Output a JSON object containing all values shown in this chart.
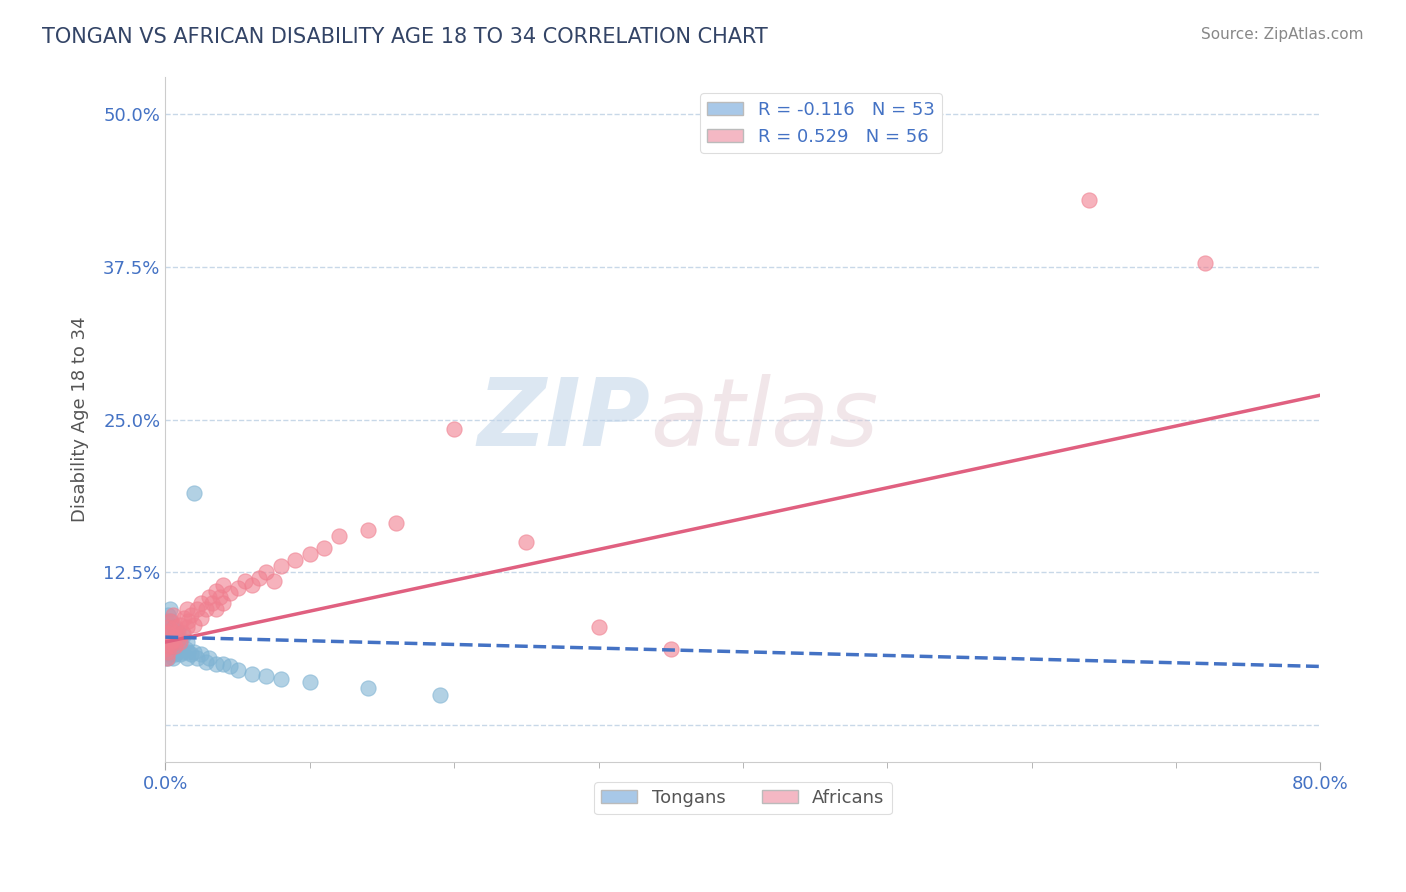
{
  "title": "TONGAN VS AFRICAN DISABILITY AGE 18 TO 34 CORRELATION CHART",
  "source_text": "Source: ZipAtlas.com",
  "ylabel": "Disability Age 18 to 34",
  "xlim": [
    0.0,
    0.8
  ],
  "ylim": [
    -0.03,
    0.53
  ],
  "yticks": [
    0.0,
    0.125,
    0.25,
    0.375,
    0.5
  ],
  "ytick_labels": [
    "",
    "12.5%",
    "25.0%",
    "37.5%",
    "50.0%"
  ],
  "xtick_labels": [
    "0.0%",
    "80.0%"
  ],
  "tongan_color": "#7fb3d3",
  "african_color": "#f08090",
  "tongan_line_color": "#4472c4",
  "african_line_color": "#e06080",
  "background_color": "#ffffff",
  "grid_color": "#c8d8e8",
  "watermark_zip": "ZIP",
  "watermark_atlas": "atlas",
  "tongan_scatter_x": [
    0.0,
    0.0,
    0.0,
    0.001,
    0.001,
    0.001,
    0.002,
    0.002,
    0.002,
    0.002,
    0.003,
    0.003,
    0.003,
    0.003,
    0.004,
    0.004,
    0.004,
    0.005,
    0.005,
    0.005,
    0.006,
    0.006,
    0.007,
    0.007,
    0.008,
    0.008,
    0.009,
    0.009,
    0.01,
    0.01,
    0.012,
    0.012,
    0.014,
    0.015,
    0.015,
    0.016,
    0.018,
    0.02,
    0.022,
    0.025,
    0.028,
    0.03,
    0.035,
    0.04,
    0.045,
    0.05,
    0.06,
    0.07,
    0.08,
    0.1,
    0.14,
    0.19,
    0.02
  ],
  "tongan_scatter_y": [
    0.055,
    0.065,
    0.08,
    0.06,
    0.07,
    0.085,
    0.055,
    0.065,
    0.075,
    0.09,
    0.058,
    0.068,
    0.078,
    0.095,
    0.06,
    0.072,
    0.085,
    0.055,
    0.068,
    0.08,
    0.062,
    0.075,
    0.058,
    0.072,
    0.06,
    0.073,
    0.062,
    0.076,
    0.058,
    0.07,
    0.06,
    0.073,
    0.062,
    0.055,
    0.068,
    0.06,
    0.058,
    0.06,
    0.055,
    0.058,
    0.052,
    0.055,
    0.05,
    0.05,
    0.048,
    0.045,
    0.042,
    0.04,
    0.038,
    0.035,
    0.03,
    0.025,
    0.19
  ],
  "african_scatter_x": [
    0.0,
    0.001,
    0.001,
    0.002,
    0.002,
    0.003,
    0.003,
    0.004,
    0.004,
    0.005,
    0.005,
    0.006,
    0.007,
    0.007,
    0.008,
    0.009,
    0.01,
    0.01,
    0.012,
    0.013,
    0.015,
    0.015,
    0.016,
    0.018,
    0.02,
    0.022,
    0.025,
    0.025,
    0.028,
    0.03,
    0.032,
    0.035,
    0.035,
    0.038,
    0.04,
    0.04,
    0.045,
    0.05,
    0.055,
    0.06,
    0.065,
    0.07,
    0.075,
    0.08,
    0.09,
    0.1,
    0.11,
    0.12,
    0.14,
    0.16,
    0.2,
    0.25,
    0.3,
    0.35,
    0.64,
    0.72
  ],
  "african_scatter_y": [
    0.062,
    0.055,
    0.075,
    0.06,
    0.08,
    0.065,
    0.085,
    0.068,
    0.078,
    0.07,
    0.09,
    0.072,
    0.065,
    0.08,
    0.075,
    0.07,
    0.068,
    0.082,
    0.075,
    0.088,
    0.08,
    0.095,
    0.085,
    0.09,
    0.082,
    0.095,
    0.088,
    0.1,
    0.095,
    0.105,
    0.1,
    0.095,
    0.11,
    0.105,
    0.1,
    0.115,
    0.108,
    0.112,
    0.118,
    0.115,
    0.12,
    0.125,
    0.118,
    0.13,
    0.135,
    0.14,
    0.145,
    0.155,
    0.16,
    0.165,
    0.242,
    0.15,
    0.08,
    0.062,
    0.43,
    0.378
  ],
  "african_line_x0": 0.0,
  "african_line_y0": 0.068,
  "african_line_x1": 0.8,
  "african_line_y1": 0.27,
  "tongan_line_x0": 0.0,
  "tongan_line_y0": 0.072,
  "tongan_line_x1": 0.8,
  "tongan_line_y1": 0.048
}
